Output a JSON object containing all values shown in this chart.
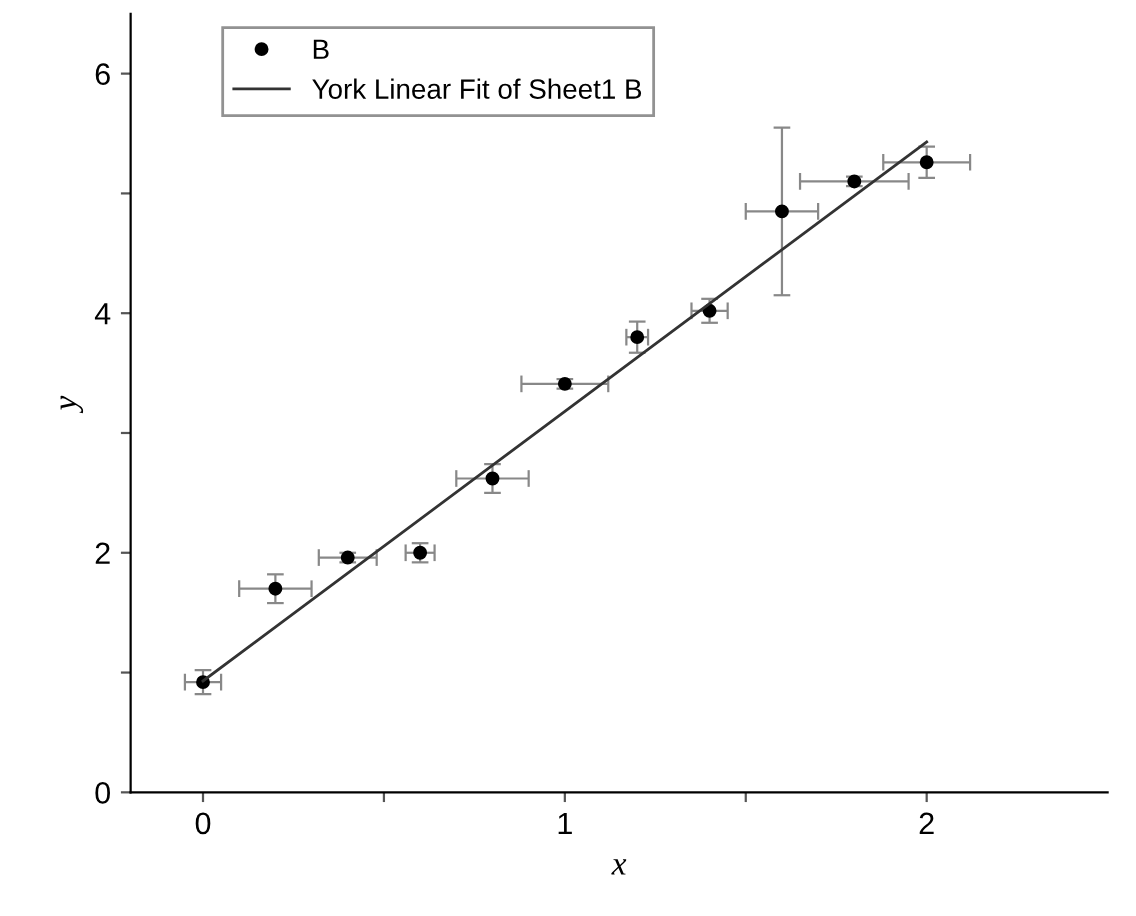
{
  "chart_data": {
    "type": "scatter",
    "xlabel": "x",
    "ylabel": "y",
    "xlim": [
      -0.2,
      2.5
    ],
    "ylim": [
      0,
      6.5
    ],
    "xticks": [
      0,
      {
        "value": 0.5,
        "label": null
      },
      1,
      {
        "value": 1.5,
        "label": null
      },
      2
    ],
    "yticks": [
      0,
      {
        "value": 1,
        "label": null
      },
      2,
      {
        "value": 3,
        "label": null
      },
      4,
      {
        "value": 5,
        "label": null
      },
      6
    ],
    "legend": "top left",
    "grid": false,
    "series": [
      {
        "name": "B",
        "color": "#000000",
        "marker": "circle",
        "x": [
          0,
          0.2,
          0.4,
          0.6,
          0.8,
          1.0,
          1.2,
          1.4,
          1.6,
          1.8,
          2.0
        ],
        "values": [
          0.92,
          1.7,
          1.96,
          2.0,
          2.62,
          3.41,
          3.8,
          4.02,
          4.85,
          5.1,
          5.26
        ],
        "errors": [
          0.1,
          0.12,
          0.04,
          0.08,
          0.12,
          0.04,
          0.13,
          0.1,
          0.7,
          0.04,
          0.13
        ],
        "xerrors": [
          0.05,
          0.1,
          0.08,
          0.04,
          0.1,
          0.12,
          0.03,
          0.05,
          0.1,
          0.15,
          0.12
        ]
      },
      {
        "name": "York Linear Fit of Sheet1 B",
        "type": "line",
        "color": "#333333",
        "line_style": "solid",
        "x": [
          0,
          2.0
        ],
        "values": [
          0.93,
          5.43
        ]
      }
    ]
  }
}
